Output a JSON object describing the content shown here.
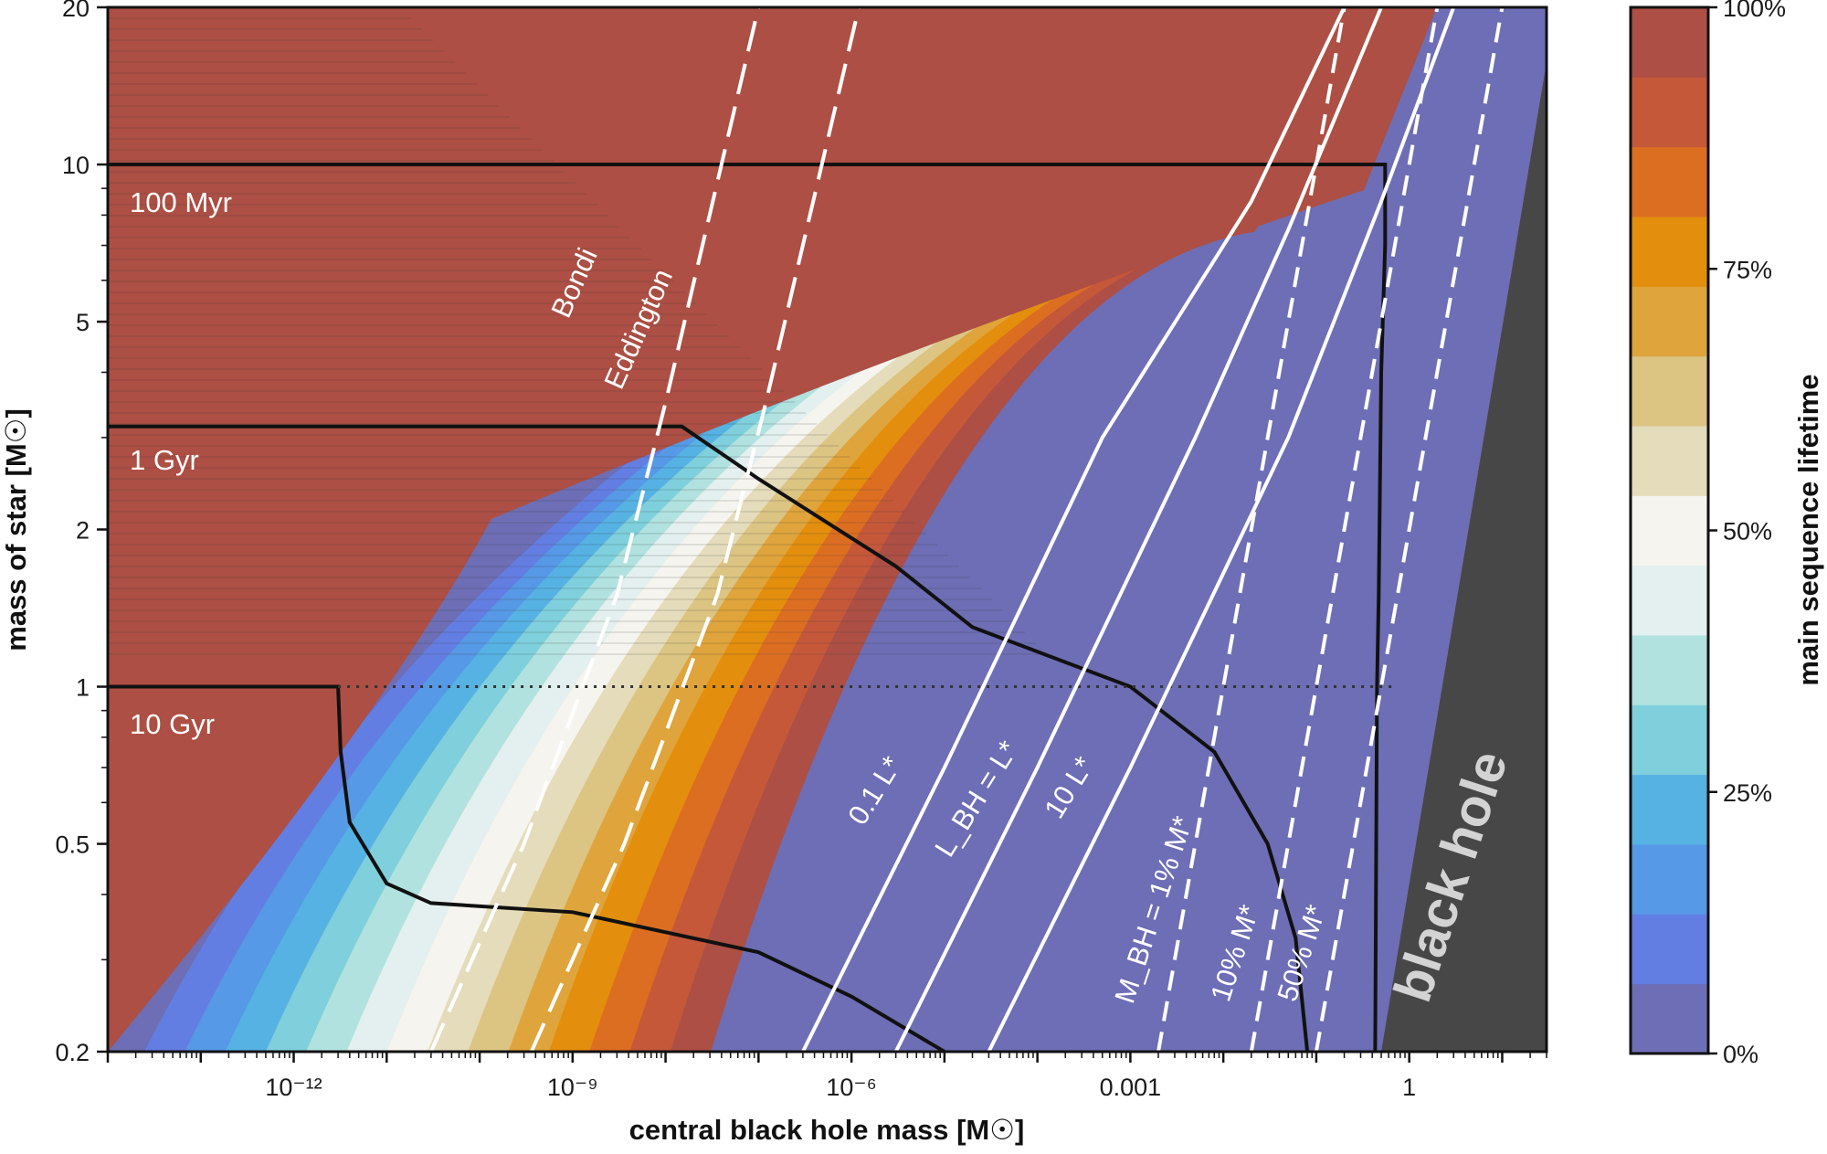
{
  "chart_data": {
    "type": "heatmap",
    "title": "",
    "xlabel": "central black hole mass [M☉]",
    "ylabel": "mass of star [M☉]",
    "x_scale": "log",
    "y_scale": "log",
    "xlim": [
      1e-14,
      30
    ],
    "ylim": [
      0.2,
      20
    ],
    "x_ticks": [
      {
        "value": 1e-12,
        "label": "10⁻¹²"
      },
      {
        "value": 1e-09,
        "label": "10⁻⁹"
      },
      {
        "value": 1e-06,
        "label": "10⁻⁶"
      },
      {
        "value": 0.001,
        "label": "0.001"
      },
      {
        "value": 1,
        "label": "1"
      }
    ],
    "y_ticks": [
      {
        "value": 0.2,
        "label": "0.2"
      },
      {
        "value": 0.5,
        "label": "0.5"
      },
      {
        "value": 1,
        "label": "1"
      },
      {
        "value": 2,
        "label": "2"
      },
      {
        "value": 5,
        "label": "5"
      },
      {
        "value": 10,
        "label": "10"
      },
      {
        "value": 20,
        "label": "20"
      }
    ],
    "colorbar": {
      "label": "main sequence lifetime",
      "range": [
        0,
        100
      ],
      "unit": "%",
      "tick_labels": [
        "0%",
        "25%",
        "50%",
        "75%",
        "100%"
      ],
      "colors": [
        "#6d6eb5",
        "#637ee2",
        "#5699e6",
        "#56b2e3",
        "#7fd0dc",
        "#b1e2df",
        "#e3f0ef",
        "#f5f4ee",
        "#e4dcbb",
        "#dcc482",
        "#dfa43b",
        "#e38e0d",
        "#dc6e22",
        "#c6583a",
        "#ad4f44"
      ]
    },
    "lifetime_contours": [
      {
        "label": "100 Myr",
        "points": [
          [
            1e-14,
            10
          ],
          [
            0.55,
            10
          ],
          [
            0.55,
            7.0
          ],
          [
            0.5,
            4.0
          ],
          [
            0.47,
            1.5
          ],
          [
            0.45,
            1.0
          ],
          [
            0.43,
            0.2
          ]
        ]
      },
      {
        "label": "1 Gyr",
        "points": [
          [
            1e-14,
            3.15
          ],
          [
            1.5e-08,
            3.15
          ],
          [
            1e-07,
            2.5
          ],
          [
            3e-06,
            1.7
          ],
          [
            2e-05,
            1.3
          ],
          [
            0.001,
            1.0
          ],
          [
            0.008,
            0.75
          ],
          [
            0.03,
            0.5
          ],
          [
            0.06,
            0.33
          ],
          [
            0.08,
            0.2
          ]
        ]
      },
      {
        "label": "10 Gyr",
        "points": [
          [
            1e-14,
            1.0
          ],
          [
            3e-12,
            1.0
          ],
          [
            3.2e-12,
            0.75
          ],
          [
            4e-12,
            0.55
          ],
          [
            1e-11,
            0.42
          ],
          [
            3e-11,
            0.385
          ],
          [
            1e-09,
            0.37
          ],
          [
            1e-07,
            0.31
          ],
          [
            1e-06,
            0.255
          ],
          [
            1e-05,
            0.2
          ]
        ]
      }
    ],
    "reference_lines": [
      {
        "label": "Bondi",
        "style": "dashed",
        "points": [
          [
            3e-11,
            0.2
          ],
          [
            3e-10,
            0.5
          ],
          [
            3e-09,
            1.5
          ],
          [
            1e-08,
            3.5
          ],
          [
            4e-08,
            10
          ],
          [
            1e-07,
            20
          ]
        ]
      },
      {
        "label": "Eddington",
        "style": "dashed",
        "points": [
          [
            3e-11,
            0.2
          ],
          [
            3e-10,
            0.5
          ],
          [
            3e-09,
            1.5
          ],
          [
            1e-08,
            3.5
          ],
          [
            4e-08,
            10
          ],
          [
            1e-07,
            20
          ]
        ]
      },
      {
        "label": "0.1 L*",
        "style": "solid",
        "points": [
          [
            3e-07,
            0.2
          ],
          [
            1e-05,
            0.7
          ],
          [
            0.0005,
            3.0
          ],
          [
            0.02,
            8.5
          ],
          [
            0.2,
            20
          ]
        ]
      },
      {
        "label": "L_BH = L*",
        "style": "solid",
        "points": [
          [
            3e-06,
            0.2
          ],
          [
            0.0001,
            0.7
          ],
          [
            0.005,
            3.0
          ],
          [
            0.05,
            7.5
          ],
          [
            0.5,
            20
          ]
        ]
      },
      {
        "label": "10 L*",
        "style": "solid",
        "points": [
          [
            3e-05,
            0.2
          ],
          [
            0.001,
            0.7
          ],
          [
            0.05,
            3.0
          ],
          [
            0.5,
            8.5
          ],
          [
            3,
            20
          ]
        ]
      },
      {
        "label": "M_BH = 1% M*",
        "style": "dashed",
        "points": [
          [
            0.002,
            0.2
          ],
          [
            0.2,
            20
          ]
        ]
      },
      {
        "label": "10% M*",
        "style": "dashed",
        "points": [
          [
            0.02,
            0.2
          ],
          [
            2,
            20
          ]
        ]
      },
      {
        "label": "50% M*",
        "style": "dashed",
        "points": [
          [
            0.1,
            0.2
          ],
          [
            10,
            20
          ]
        ]
      }
    ],
    "horizontal_reference": {
      "value": 1,
      "style": "dotted"
    },
    "annotations": [
      "100 Myr",
      "1 Gyr",
      "10 Gyr",
      "Bondi",
      "Eddington",
      "0.1 L*",
      "L_BH = L*",
      "10 L*",
      "M_BH = 1% M*",
      "10% M*",
      "50% M*",
      "black hole"
    ]
  }
}
